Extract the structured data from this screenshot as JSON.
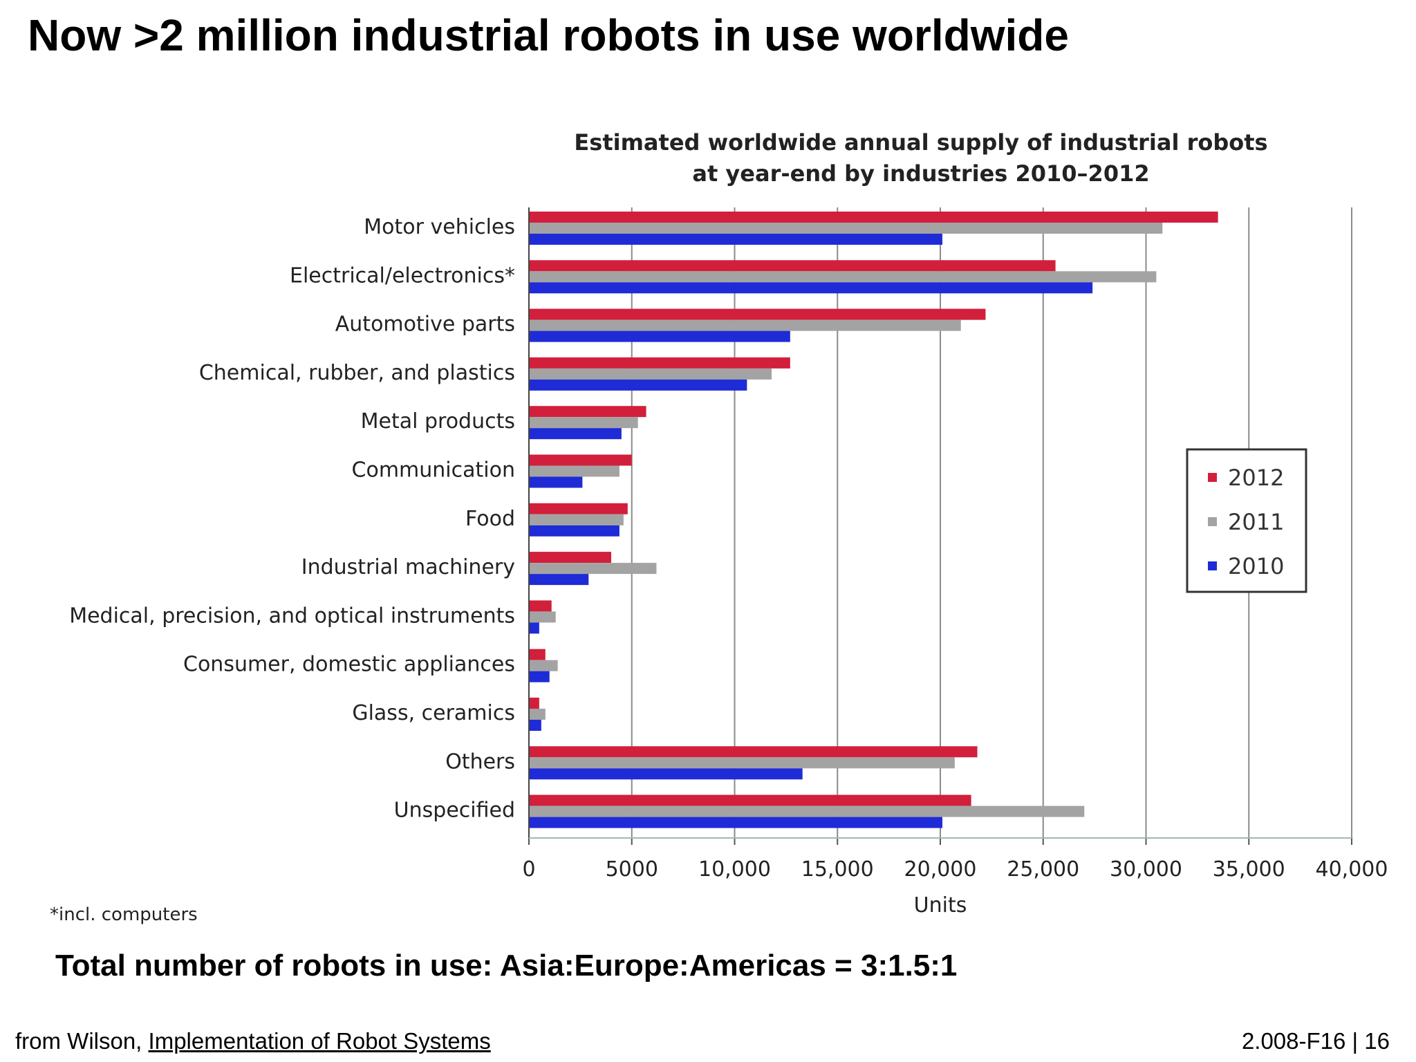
{
  "slide": {
    "title": "Now >2 million industrial robots in use worldwide",
    "summary": "Total number of robots in use: Asia:Europe:Americas = 3:1.5:1",
    "source_prefix": "from Wilson, ",
    "source_link": "Implementation of Robot Systems",
    "slide_id": "2.008-F16 | 16"
  },
  "chart_data": {
    "type": "bar",
    "orientation": "horizontal",
    "title": [
      "Estimated worldwide annual supply of industrial robots",
      "at year-end  by industries 2010–2012"
    ],
    "xlabel": "Units",
    "ylabel": "",
    "xlim": [
      0,
      40000
    ],
    "xticks": [
      0,
      5000,
      10000,
      15000,
      20000,
      25000,
      30000,
      35000,
      40000
    ],
    "xtick_labels": [
      "0",
      "5000",
      "10,000",
      "15,000",
      "20,000",
      "25,000",
      "30,000",
      "35,000",
      "40,000"
    ],
    "grid": "vertical",
    "legend_position": "right",
    "footnote": "*incl. computers",
    "categories": [
      "Motor vehicles",
      "Electrical/electronics*",
      "Automotive parts",
      "Chemical, rubber, and plastics",
      "Metal products",
      "Communication",
      "Food",
      "Industrial machinery",
      "Medical, precision, and optical instruments",
      "Consumer, domestic appliances",
      "Glass, ceramics",
      "Others",
      "Unspecified"
    ],
    "series": [
      {
        "name": "2012",
        "color": "#d21f3c",
        "values": [
          33500,
          25600,
          22200,
          12700,
          5700,
          5000,
          4800,
          4000,
          1100,
          800,
          500,
          21800,
          21500
        ]
      },
      {
        "name": "2011",
        "color": "#a3a3a3",
        "values": [
          30800,
          30500,
          21000,
          11800,
          5300,
          4400,
          4600,
          6200,
          1300,
          1400,
          800,
          20700,
          27000
        ]
      },
      {
        "name": "2010",
        "color": "#1f2bd6",
        "values": [
          20100,
          27400,
          12700,
          10600,
          4500,
          2600,
          4400,
          2900,
          500,
          1000,
          600,
          13300,
          20100
        ]
      }
    ]
  }
}
